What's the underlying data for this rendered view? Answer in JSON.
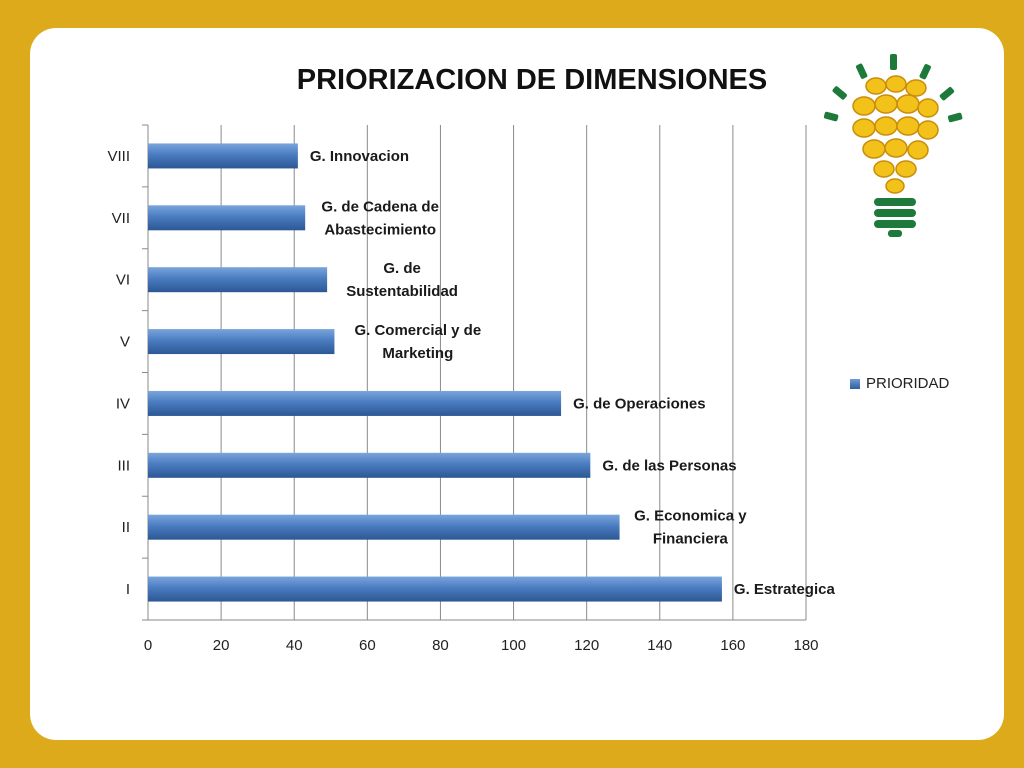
{
  "chart_data": {
    "type": "bar",
    "orientation": "horizontal",
    "title": "PRIORIZACION DE DIMENSIONES",
    "categories": [
      "I",
      "II",
      "III",
      "IV",
      "V",
      "VI",
      "VII",
      "VIII"
    ],
    "series": [
      {
        "name": "PRIORIDAD",
        "values": [
          157,
          129,
          121,
          113,
          51,
          49,
          43,
          41
        ]
      }
    ],
    "data_labels": [
      [
        "G. Estrategica"
      ],
      [
        "G. Economica y",
        "Financiera"
      ],
      [
        "G. de las Personas"
      ],
      [
        "G. de Operaciones"
      ],
      [
        "G. Comercial y de",
        "Marketing"
      ],
      [
        "G. de",
        "Sustentabilidad"
      ],
      [
        "G. de Cadena de",
        "Abastecimiento"
      ],
      [
        "G. Innovacion"
      ]
    ],
    "xlim": [
      0,
      180
    ],
    "xticks": [
      0,
      20,
      40,
      60,
      80,
      100,
      120,
      140,
      160,
      180
    ],
    "grid": true,
    "legend": "right",
    "bar_color": "#3f72b8"
  },
  "logo": {
    "icon": "corn-lightbulb-icon"
  }
}
